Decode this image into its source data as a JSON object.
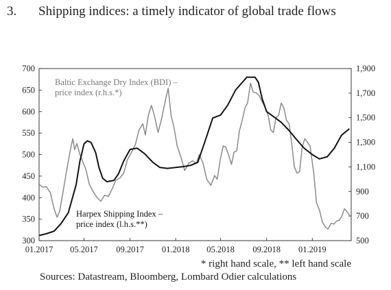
{
  "header": {
    "number": "3.",
    "title": "Shipping indices: a timely indicator of global trade flows"
  },
  "footnote": "* right hand scale, ** left hand scale",
  "source": "Sources: Datastream, Bloomberg, Lombard Odier calculations",
  "chart_data": {
    "type": "line",
    "x_ticks": [
      "01.2017",
      "05.2017",
      "09.2017",
      "01.2018",
      "05.2018",
      "09.2018",
      "01.2019"
    ],
    "x_range": [
      "2017-01-01",
      "2019-04-15"
    ],
    "y_left": {
      "ticks": [
        "300",
        "350",
        "400",
        "450",
        "500",
        "550",
        "600",
        "650",
        "700"
      ],
      "range": [
        300,
        700
      ]
    },
    "y_right": {
      "ticks": [
        "500",
        "700",
        "900",
        "1,100",
        "1,300",
        "1,500",
        "1,700",
        "1,900"
      ],
      "range": [
        500,
        1900
      ]
    },
    "annotations": [
      {
        "series": "bdi",
        "lines": [
          "Baltic Exchange Dry Index (BDI) –",
          "price index (r.h.s.*)"
        ]
      },
      {
        "series": "harpex",
        "lines": [
          "Harpex Shipping Index –",
          "price index (l.h.s.**)"
        ]
      }
    ],
    "series": [
      {
        "id": "harpex",
        "name": "Harpex Shipping Index – price index (l.h.s.**)",
        "axis": "left",
        "color": "#111111",
        "points": [
          [
            "2017-01-01",
            312
          ],
          [
            "2017-01-20",
            316
          ],
          [
            "2017-02-10",
            322
          ],
          [
            "2017-03-01",
            340
          ],
          [
            "2017-03-20",
            365
          ],
          [
            "2017-04-10",
            430
          ],
          [
            "2017-04-20",
            485
          ],
          [
            "2017-05-01",
            525
          ],
          [
            "2017-05-10",
            532
          ],
          [
            "2017-05-20",
            528
          ],
          [
            "2017-06-01",
            505
          ],
          [
            "2017-06-10",
            470
          ],
          [
            "2017-06-20",
            445
          ],
          [
            "2017-07-01",
            437
          ],
          [
            "2017-07-20",
            440
          ],
          [
            "2017-08-01",
            455
          ],
          [
            "2017-08-15",
            485
          ],
          [
            "2017-09-01",
            512
          ],
          [
            "2017-09-20",
            515
          ],
          [
            "2017-10-10",
            502
          ],
          [
            "2017-11-01",
            482
          ],
          [
            "2017-11-20",
            470
          ],
          [
            "2017-12-10",
            468
          ],
          [
            "2018-01-01",
            470
          ],
          [
            "2018-01-20",
            472
          ],
          [
            "2018-02-10",
            475
          ],
          [
            "2018-03-01",
            482
          ],
          [
            "2018-03-20",
            530
          ],
          [
            "2018-04-10",
            585
          ],
          [
            "2018-05-01",
            592
          ],
          [
            "2018-05-20",
            615
          ],
          [
            "2018-06-10",
            650
          ],
          [
            "2018-06-25",
            665
          ],
          [
            "2018-07-10",
            680
          ],
          [
            "2018-08-01",
            680
          ],
          [
            "2018-08-10",
            668
          ],
          [
            "2018-08-20",
            630
          ],
          [
            "2018-09-01",
            600
          ],
          [
            "2018-09-20",
            588
          ],
          [
            "2018-10-10",
            575
          ],
          [
            "2018-11-01",
            555
          ],
          [
            "2018-11-20",
            535
          ],
          [
            "2018-12-10",
            515
          ],
          [
            "2019-01-01",
            500
          ],
          [
            "2019-01-20",
            490
          ],
          [
            "2019-02-10",
            495
          ],
          [
            "2019-03-01",
            515
          ],
          [
            "2019-03-20",
            545
          ],
          [
            "2019-04-10",
            560
          ]
        ]
      },
      {
        "id": "bdi",
        "name": "Baltic Exchange Dry Index (BDI) – price index (r.h.s.*)",
        "axis": "right",
        "color": "#8a8a8a",
        "points": [
          [
            "2017-01-01",
            960
          ],
          [
            "2017-01-10",
            935
          ],
          [
            "2017-01-20",
            940
          ],
          [
            "2017-01-31",
            890
          ],
          [
            "2017-02-10",
            760
          ],
          [
            "2017-02-18",
            690
          ],
          [
            "2017-02-25",
            740
          ],
          [
            "2017-03-05",
            880
          ],
          [
            "2017-03-15",
            1060
          ],
          [
            "2017-03-25",
            1230
          ],
          [
            "2017-04-01",
            1330
          ],
          [
            "2017-04-06",
            1240
          ],
          [
            "2017-04-12",
            1290
          ],
          [
            "2017-04-20",
            1200
          ],
          [
            "2017-04-28",
            1140
          ],
          [
            "2017-05-06",
            1080
          ],
          [
            "2017-05-15",
            960
          ],
          [
            "2017-05-25",
            900
          ],
          [
            "2017-06-05",
            850
          ],
          [
            "2017-06-15",
            820
          ],
          [
            "2017-06-25",
            870
          ],
          [
            "2017-07-05",
            860
          ],
          [
            "2017-07-15",
            920
          ],
          [
            "2017-07-25",
            990
          ],
          [
            "2017-08-05",
            1010
          ],
          [
            "2017-08-15",
            1050
          ],
          [
            "2017-08-25",
            1160
          ],
          [
            "2017-09-05",
            1220
          ],
          [
            "2017-09-15",
            1280
          ],
          [
            "2017-09-25",
            1400
          ],
          [
            "2017-10-05",
            1450
          ],
          [
            "2017-10-12",
            1360
          ],
          [
            "2017-10-20",
            1520
          ],
          [
            "2017-10-28",
            1600
          ],
          [
            "2017-11-05",
            1520
          ],
          [
            "2017-11-15",
            1380
          ],
          [
            "2017-11-25",
            1500
          ],
          [
            "2017-12-05",
            1650
          ],
          [
            "2017-12-12",
            1740
          ],
          [
            "2017-12-20",
            1510
          ],
          [
            "2017-12-27",
            1430
          ],
          [
            "2018-01-05",
            1270
          ],
          [
            "2018-01-15",
            1180
          ],
          [
            "2018-01-25",
            1070
          ],
          [
            "2018-02-05",
            1130
          ],
          [
            "2018-02-15",
            1150
          ],
          [
            "2018-02-25",
            1130
          ],
          [
            "2018-03-05",
            1200
          ],
          [
            "2018-03-15",
            1130
          ],
          [
            "2018-03-25",
            1000
          ],
          [
            "2018-04-05",
            950
          ],
          [
            "2018-04-15",
            1030
          ],
          [
            "2018-04-22",
            1000
          ],
          [
            "2018-04-30",
            1160
          ],
          [
            "2018-05-08",
            1270
          ],
          [
            "2018-05-15",
            1260
          ],
          [
            "2018-05-22",
            1200
          ],
          [
            "2018-05-30",
            1120
          ],
          [
            "2018-06-06",
            1220
          ],
          [
            "2018-06-13",
            1230
          ],
          [
            "2018-06-20",
            1390
          ],
          [
            "2018-06-27",
            1470
          ],
          [
            "2018-07-05",
            1580
          ],
          [
            "2018-07-12",
            1620
          ],
          [
            "2018-07-20",
            1780
          ],
          [
            "2018-07-27",
            1710
          ],
          [
            "2018-08-05",
            1700
          ],
          [
            "2018-08-12",
            1680
          ],
          [
            "2018-08-20",
            1630
          ],
          [
            "2018-08-27",
            1590
          ],
          [
            "2018-09-05",
            1520
          ],
          [
            "2018-09-12",
            1400
          ],
          [
            "2018-09-19",
            1380
          ],
          [
            "2018-09-26",
            1500
          ],
          [
            "2018-10-03",
            1520
          ],
          [
            "2018-10-10",
            1620
          ],
          [
            "2018-10-17",
            1580
          ],
          [
            "2018-10-24",
            1480
          ],
          [
            "2018-10-31",
            1450
          ],
          [
            "2018-11-07",
            1290
          ],
          [
            "2018-11-14",
            1100
          ],
          [
            "2018-11-21",
            1050
          ],
          [
            "2018-11-28",
            1060
          ],
          [
            "2018-12-05",
            1260
          ],
          [
            "2018-12-12",
            1330
          ],
          [
            "2018-12-19",
            1300
          ],
          [
            "2018-12-26",
            1270
          ],
          [
            "2019-01-05",
            1050
          ],
          [
            "2019-01-12",
            810
          ],
          [
            "2019-01-20",
            750
          ],
          [
            "2019-01-28",
            650
          ],
          [
            "2019-02-05",
            610
          ],
          [
            "2019-02-12",
            595
          ],
          [
            "2019-02-20",
            640
          ],
          [
            "2019-02-28",
            635
          ],
          [
            "2019-03-07",
            660
          ],
          [
            "2019-03-14",
            665
          ],
          [
            "2019-03-21",
            700
          ],
          [
            "2019-03-28",
            760
          ],
          [
            "2019-04-05",
            730
          ],
          [
            "2019-04-12",
            700
          ]
        ]
      }
    ]
  }
}
